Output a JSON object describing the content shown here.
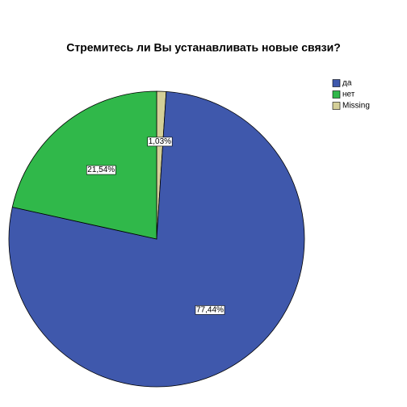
{
  "chart_data": {
    "type": "pie",
    "title": "Стремитесь ли Вы устанавливать новые связи?",
    "series": [
      {
        "name": "да",
        "color": "#3f58ac",
        "values": [
          77.44
        ],
        "value_labels": [
          "77,44%"
        ]
      },
      {
        "name": "нет",
        "color": "#30b84a",
        "values": [
          21.54
        ],
        "value_labels": [
          "21,54%"
        ]
      },
      {
        "name": "Missing",
        "color": "#d4cf98",
        "values": [
          1.03
        ],
        "value_labels": [
          "1,03%"
        ]
      }
    ],
    "legend": "top-right"
  }
}
